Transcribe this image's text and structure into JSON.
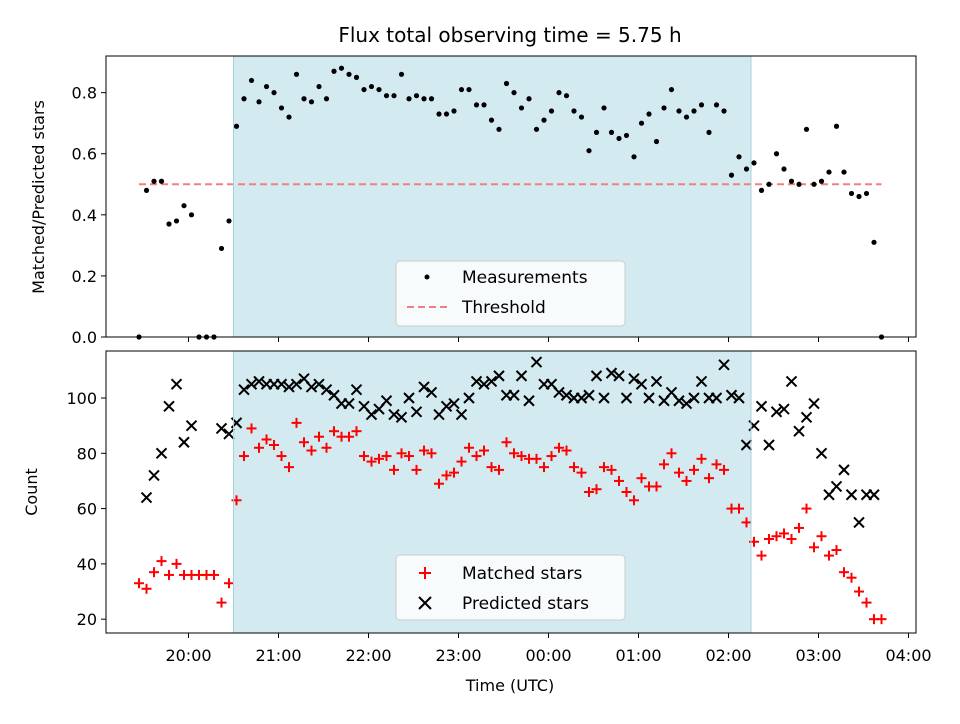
{
  "chart_data": [
    {
      "type": "scatter",
      "title": "Flux total observing time = 5.75 h",
      "ylabel": "Matched/Predicted stars",
      "xlabel": "",
      "x_unit": "hours (UTC, continuing past midnight)",
      "xlim": [
        "19:05",
        "04:05"
      ],
      "ylim": [
        0,
        0.92
      ],
      "yticks": [
        "0.0",
        "0.2",
        "0.4",
        "0.6",
        "0.8"
      ],
      "grid": false,
      "legend_position": "lower center",
      "shaded_region": {
        "x_start": "20:30",
        "x_end": "02:15",
        "color": "#d4eaf1"
      },
      "series": [
        {
          "name": "Measurements",
          "color": "#000000",
          "marker": "dot",
          "x": [
            "19:27",
            "19:32",
            "19:37",
            "19:42",
            "19:47",
            "19:52",
            "19:57",
            "20:02",
            "20:07",
            "20:12",
            "20:17",
            "20:22",
            "20:27",
            "20:32",
            "20:37",
            "20:42",
            "20:47",
            "20:52",
            "20:57",
            "21:02",
            "21:07",
            "21:12",
            "21:17",
            "21:22",
            "21:27",
            "21:32",
            "21:37",
            "21:42",
            "21:47",
            "21:52",
            "21:57",
            "22:02",
            "22:07",
            "22:12",
            "22:17",
            "22:22",
            "22:27",
            "22:32",
            "22:37",
            "22:42",
            "22:47",
            "22:52",
            "22:57",
            "23:02",
            "23:07",
            "23:12",
            "23:17",
            "23:22",
            "23:27",
            "23:32",
            "23:37",
            "23:42",
            "23:47",
            "23:52",
            "23:57",
            "00:02",
            "00:07",
            "00:12",
            "00:17",
            "00:22",
            "00:27",
            "00:32",
            "00:37",
            "00:42",
            "00:47",
            "00:52",
            "00:57",
            "01:02",
            "01:07",
            "01:12",
            "01:17",
            "01:22",
            "01:27",
            "01:32",
            "01:37",
            "01:42",
            "01:47",
            "01:52",
            "01:57",
            "02:02",
            "02:07",
            "02:12",
            "02:17",
            "02:22",
            "02:27",
            "02:32",
            "02:37",
            "02:42",
            "02:47",
            "02:52",
            "02:57",
            "03:02",
            "03:07",
            "03:12",
            "03:17",
            "03:22",
            "03:27",
            "03:32",
            "03:37",
            "03:42"
          ],
          "y": [
            0.0,
            0.48,
            0.51,
            0.51,
            0.37,
            0.38,
            0.43,
            0.4,
            0.0,
            0.0,
            0.0,
            0.29,
            0.38,
            0.69,
            0.78,
            0.84,
            0.77,
            0.82,
            0.8,
            0.75,
            0.72,
            0.86,
            0.78,
            0.77,
            0.82,
            0.78,
            0.87,
            0.88,
            0.86,
            0.85,
            0.81,
            0.82,
            0.81,
            0.79,
            0.79,
            0.86,
            0.78,
            0.79,
            0.78,
            0.78,
            0.73,
            0.73,
            0.74,
            0.81,
            0.81,
            0.76,
            0.76,
            0.71,
            0.68,
            0.83,
            0.8,
            0.75,
            0.78,
            0.68,
            0.71,
            0.74,
            0.8,
            0.79,
            0.74,
            0.72,
            0.61,
            0.67,
            0.75,
            0.67,
            0.65,
            0.66,
            0.59,
            0.7,
            0.73,
            0.64,
            0.75,
            0.81,
            0.74,
            0.72,
            0.74,
            0.76,
            0.67,
            0.76,
            0.74,
            0.53,
            0.59,
            0.55,
            0.57,
            0.48,
            0.5,
            0.6,
            0.55,
            0.51,
            0.5,
            0.68,
            0.5,
            0.51,
            0.54,
            0.69,
            0.54,
            0.47,
            0.46,
            0.47,
            0.31,
            0.0
          ]
        },
        {
          "name": "Threshold",
          "color": "#f08080",
          "style": "dashed",
          "x": [
            "19:27",
            "03:42"
          ],
          "y": [
            0.5,
            0.5
          ]
        }
      ]
    },
    {
      "type": "scatter",
      "title": "",
      "ylabel": "Count",
      "xlabel": "Time (UTC)",
      "xticks": [
        "20:00",
        "21:00",
        "22:00",
        "23:00",
        "00:00",
        "01:00",
        "02:00",
        "03:00",
        "04:00"
      ],
      "xlim": [
        "19:05",
        "04:05"
      ],
      "ylim": [
        15,
        117
      ],
      "yticks": [
        "20",
        "40",
        "60",
        "80",
        "100"
      ],
      "grid": false,
      "legend_position": "lower center",
      "shaded_region": {
        "x_start": "20:30",
        "x_end": "02:15",
        "color": "#d4eaf1"
      },
      "series": [
        {
          "name": "Matched stars",
          "color": "#ff0000",
          "marker": "plus",
          "x": [
            "19:27",
            "19:32",
            "19:37",
            "19:42",
            "19:47",
            "19:52",
            "19:57",
            "20:02",
            "20:07",
            "20:12",
            "20:17",
            "20:22",
            "20:27",
            "20:32",
            "20:37",
            "20:42",
            "20:47",
            "20:52",
            "20:57",
            "21:02",
            "21:07",
            "21:12",
            "21:17",
            "21:22",
            "21:27",
            "21:32",
            "21:37",
            "21:42",
            "21:47",
            "21:52",
            "21:57",
            "22:02",
            "22:07",
            "22:12",
            "22:17",
            "22:22",
            "22:27",
            "22:32",
            "22:37",
            "22:42",
            "22:47",
            "22:52",
            "22:57",
            "23:02",
            "23:07",
            "23:12",
            "23:17",
            "23:22",
            "23:27",
            "23:32",
            "23:37",
            "23:42",
            "23:47",
            "23:52",
            "23:57",
            "00:02",
            "00:07",
            "00:12",
            "00:17",
            "00:22",
            "00:27",
            "00:32",
            "00:37",
            "00:42",
            "00:47",
            "00:52",
            "00:57",
            "01:02",
            "01:07",
            "01:12",
            "01:17",
            "01:22",
            "01:27",
            "01:32",
            "01:37",
            "01:42",
            "01:47",
            "01:52",
            "01:57",
            "02:02",
            "02:07",
            "02:12",
            "02:17",
            "02:22",
            "02:27",
            "02:32",
            "02:37",
            "02:42",
            "02:47",
            "02:52",
            "02:57",
            "03:02",
            "03:07",
            "03:12",
            "03:17",
            "03:22",
            "03:27",
            "03:32",
            "03:37",
            "03:42"
          ],
          "y": [
            33,
            31,
            37,
            41,
            36,
            40,
            36,
            36,
            36,
            36,
            36,
            26,
            33,
            63,
            79,
            89,
            82,
            85,
            83,
            79,
            75,
            91,
            84,
            81,
            86,
            82,
            88,
            86,
            86,
            88,
            79,
            77,
            78,
            79,
            74,
            80,
            79,
            74,
            81,
            80,
            69,
            72,
            73,
            77,
            82,
            79,
            81,
            75,
            74,
            84,
            80,
            79,
            78,
            78,
            75,
            79,
            82,
            81,
            75,
            73,
            66,
            67,
            75,
            74,
            70,
            66,
            63,
            71,
            68,
            68,
            76,
            80,
            73,
            70,
            74,
            78,
            71,
            76,
            74,
            60,
            60,
            55,
            48,
            43,
            49,
            50,
            51,
            49,
            53,
            60,
            46,
            50,
            43,
            45,
            37,
            35,
            30,
            26,
            20,
            20
          ]
        },
        {
          "name": "Predicted stars",
          "color": "#000000",
          "marker": "x",
          "x": [
            "19:32",
            "19:37",
            "19:42",
            "19:47",
            "19:52",
            "19:57",
            "20:02",
            "20:22",
            "20:27",
            "20:32",
            "20:37",
            "20:42",
            "20:47",
            "20:52",
            "20:57",
            "21:02",
            "21:07",
            "21:12",
            "21:17",
            "21:22",
            "21:27",
            "21:32",
            "21:37",
            "21:42",
            "21:47",
            "21:52",
            "21:57",
            "22:02",
            "22:07",
            "22:12",
            "22:17",
            "22:22",
            "22:27",
            "22:32",
            "22:37",
            "22:42",
            "22:47",
            "22:52",
            "22:57",
            "23:02",
            "23:07",
            "23:12",
            "23:17",
            "23:22",
            "23:27",
            "23:32",
            "23:37",
            "23:42",
            "23:47",
            "23:52",
            "23:57",
            "00:02",
            "00:07",
            "00:12",
            "00:17",
            "00:22",
            "00:27",
            "00:32",
            "00:37",
            "00:42",
            "00:47",
            "00:52",
            "00:57",
            "01:02",
            "01:07",
            "01:12",
            "01:17",
            "01:22",
            "01:27",
            "01:32",
            "01:37",
            "01:42",
            "01:47",
            "01:52",
            "01:57",
            "02:02",
            "02:07",
            "02:12",
            "02:17",
            "02:22",
            "02:27",
            "02:32",
            "02:37",
            "02:42",
            "02:47",
            "02:52",
            "02:57",
            "03:02",
            "03:07",
            "03:12",
            "03:17",
            "03:22",
            "03:27",
            "03:32",
            "03:37"
          ],
          "y": [
            64,
            72,
            80,
            97,
            105,
            84,
            90,
            89,
            87,
            91,
            103,
            105,
            106,
            105,
            105,
            105,
            104,
            105,
            107,
            104,
            105,
            103,
            101,
            98,
            98,
            103,
            97,
            94,
            96,
            99,
            94,
            93,
            100,
            95,
            104,
            102,
            94,
            97,
            98,
            94,
            100,
            106,
            105,
            106,
            108,
            101,
            101,
            108,
            99,
            113,
            105,
            105,
            102,
            101,
            100,
            100,
            101,
            108,
            100,
            109,
            108,
            100,
            107,
            105,
            100,
            106,
            99,
            102,
            99,
            98,
            100,
            106,
            100,
            100,
            112,
            101,
            100,
            83,
            90,
            97,
            83,
            95,
            96,
            106,
            88,
            93,
            98,
            80,
            65,
            68,
            74,
            65,
            55,
            65,
            65
          ]
        }
      ]
    }
  ],
  "legend_top": {
    "items": [
      "Measurements",
      "Threshold"
    ]
  },
  "legend_bottom": {
    "items": [
      "Matched stars",
      "Predicted stars"
    ]
  }
}
